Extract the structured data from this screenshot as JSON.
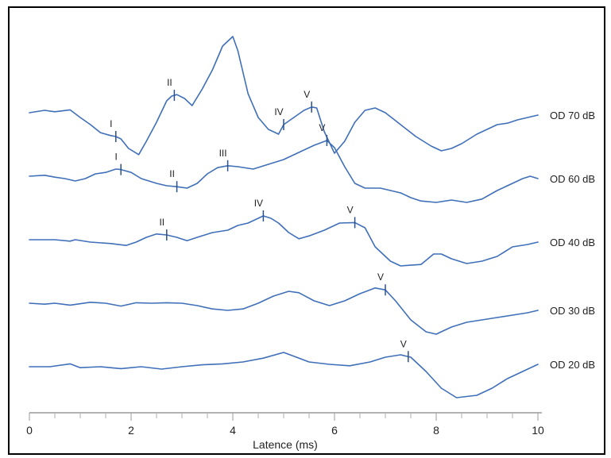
{
  "chart_data": {
    "type": "line",
    "xlabel": "Latence (ms)",
    "xlim": [
      0,
      10
    ],
    "x_ticks": [
      0,
      2,
      4,
      6,
      8,
      10
    ],
    "colors": {
      "trace": "#3f6fb8",
      "marker": "#2d4f8a",
      "axis": "#9a9a9a"
    },
    "series": [
      {
        "name": "OD 70 dB",
        "offset": 4,
        "points": [
          [
            0,
            0
          ],
          [
            0.3,
            0.05
          ],
          [
            0.5,
            0.02
          ],
          [
            0.8,
            0.06
          ],
          [
            1.0,
            -0.1
          ],
          [
            1.2,
            -0.25
          ],
          [
            1.4,
            -0.42
          ],
          [
            1.6,
            -0.48
          ],
          [
            1.7,
            -0.5
          ],
          [
            1.8,
            -0.55
          ],
          [
            1.95,
            -0.75
          ],
          [
            2.15,
            -0.88
          ],
          [
            2.3,
            -0.6
          ],
          [
            2.5,
            -0.2
          ],
          [
            2.7,
            0.25
          ],
          [
            2.8,
            0.35
          ],
          [
            2.9,
            0.38
          ],
          [
            3.05,
            0.3
          ],
          [
            3.2,
            0.15
          ],
          [
            3.4,
            0.5
          ],
          [
            3.6,
            0.9
          ],
          [
            3.8,
            1.4
          ],
          [
            4.0,
            1.6
          ],
          [
            4.1,
            1.3
          ],
          [
            4.3,
            0.4
          ],
          [
            4.5,
            -0.1
          ],
          [
            4.7,
            -0.35
          ],
          [
            4.9,
            -0.45
          ],
          [
            5.0,
            -0.25
          ],
          [
            5.2,
            -0.1
          ],
          [
            5.4,
            0.05
          ],
          [
            5.55,
            0.12
          ],
          [
            5.65,
            0.1
          ],
          [
            5.8,
            -0.4
          ],
          [
            6.0,
            -0.85
          ],
          [
            6.2,
            -0.6
          ],
          [
            6.4,
            -0.2
          ],
          [
            6.6,
            0.05
          ],
          [
            6.8,
            0.1
          ],
          [
            7.0,
            0.0
          ],
          [
            7.3,
            -0.25
          ],
          [
            7.6,
            -0.5
          ],
          [
            7.9,
            -0.7
          ],
          [
            8.1,
            -0.8
          ],
          [
            8.3,
            -0.75
          ],
          [
            8.5,
            -0.65
          ],
          [
            8.8,
            -0.45
          ],
          [
            9.0,
            -0.35
          ],
          [
            9.2,
            -0.25
          ],
          [
            9.4,
            -0.22
          ],
          [
            9.6,
            -0.15
          ],
          [
            9.8,
            -0.1
          ],
          [
            10.0,
            -0.05
          ]
        ]
      },
      {
        "name": "OD 60 dB",
        "offset": 3,
        "points": [
          [
            0,
            0
          ],
          [
            0.3,
            0.02
          ],
          [
            0.5,
            -0.02
          ],
          [
            0.7,
            -0.05
          ],
          [
            0.9,
            -0.1
          ],
          [
            1.1,
            -0.05
          ],
          [
            1.3,
            0.05
          ],
          [
            1.5,
            0.08
          ],
          [
            1.7,
            0.15
          ],
          [
            1.8,
            0.14
          ],
          [
            2.0,
            0.08
          ],
          [
            2.2,
            -0.05
          ],
          [
            2.5,
            -0.15
          ],
          [
            2.7,
            -0.2
          ],
          [
            2.9,
            -0.22
          ],
          [
            3.1,
            -0.25
          ],
          [
            3.3,
            -0.15
          ],
          [
            3.5,
            0.05
          ],
          [
            3.7,
            0.18
          ],
          [
            3.9,
            0.22
          ],
          [
            4.1,
            0.2
          ],
          [
            4.4,
            0.15
          ],
          [
            4.7,
            0.25
          ],
          [
            5.0,
            0.35
          ],
          [
            5.3,
            0.5
          ],
          [
            5.6,
            0.65
          ],
          [
            5.85,
            0.75
          ],
          [
            6.0,
            0.6
          ],
          [
            6.2,
            0.2
          ],
          [
            6.4,
            -0.15
          ],
          [
            6.6,
            -0.25
          ],
          [
            6.9,
            -0.25
          ],
          [
            7.1,
            -0.3
          ],
          [
            7.3,
            -0.35
          ],
          [
            7.5,
            -0.45
          ],
          [
            7.7,
            -0.52
          ],
          [
            8.0,
            -0.55
          ],
          [
            8.3,
            -0.5
          ],
          [
            8.6,
            -0.55
          ],
          [
            8.9,
            -0.48
          ],
          [
            9.2,
            -0.3
          ],
          [
            9.5,
            -0.15
          ],
          [
            9.7,
            -0.05
          ],
          [
            9.85,
            0.0
          ],
          [
            10.0,
            -0.05
          ]
        ]
      },
      {
        "name": "OD 40 dB",
        "offset": 2,
        "points": [
          [
            0,
            0
          ],
          [
            0.5,
            0.0
          ],
          [
            0.8,
            -0.03
          ],
          [
            0.9,
            0.0
          ],
          [
            1.2,
            -0.05
          ],
          [
            1.6,
            -0.08
          ],
          [
            1.9,
            -0.12
          ],
          [
            2.1,
            -0.05
          ],
          [
            2.3,
            0.05
          ],
          [
            2.5,
            0.12
          ],
          [
            2.7,
            0.1
          ],
          [
            2.9,
            0.05
          ],
          [
            3.1,
            -0.02
          ],
          [
            3.3,
            0.05
          ],
          [
            3.6,
            0.15
          ],
          [
            3.9,
            0.2
          ],
          [
            4.1,
            0.3
          ],
          [
            4.3,
            0.35
          ],
          [
            4.5,
            0.45
          ],
          [
            4.6,
            0.5
          ],
          [
            4.75,
            0.45
          ],
          [
            4.9,
            0.35
          ],
          [
            5.1,
            0.15
          ],
          [
            5.3,
            0.02
          ],
          [
            5.5,
            0.08
          ],
          [
            5.8,
            0.2
          ],
          [
            6.1,
            0.35
          ],
          [
            6.4,
            0.36
          ],
          [
            6.6,
            0.25
          ],
          [
            6.8,
            -0.15
          ],
          [
            7.1,
            -0.45
          ],
          [
            7.3,
            -0.55
          ],
          [
            7.7,
            -0.52
          ],
          [
            7.95,
            -0.3
          ],
          [
            8.1,
            -0.3
          ],
          [
            8.3,
            -0.4
          ],
          [
            8.6,
            -0.5
          ],
          [
            8.9,
            -0.45
          ],
          [
            9.2,
            -0.35
          ],
          [
            9.5,
            -0.15
          ],
          [
            9.8,
            -0.1
          ],
          [
            10.0,
            -0.05
          ]
        ]
      },
      {
        "name": "OD 30 dB",
        "offset": 1,
        "points": [
          [
            0,
            0
          ],
          [
            0.3,
            -0.02
          ],
          [
            0.5,
            0.0
          ],
          [
            0.8,
            -0.04
          ],
          [
            1.2,
            0.02
          ],
          [
            1.5,
            0.0
          ],
          [
            1.8,
            -0.06
          ],
          [
            2.1,
            0.01
          ],
          [
            2.4,
            0.0
          ],
          [
            2.7,
            0.01
          ],
          [
            3.0,
            0.0
          ],
          [
            3.3,
            -0.05
          ],
          [
            3.6,
            -0.12
          ],
          [
            3.9,
            -0.15
          ],
          [
            4.2,
            -0.12
          ],
          [
            4.5,
            0.0
          ],
          [
            4.8,
            0.15
          ],
          [
            5.1,
            0.25
          ],
          [
            5.3,
            0.22
          ],
          [
            5.6,
            0.05
          ],
          [
            5.9,
            -0.05
          ],
          [
            6.2,
            0.05
          ],
          [
            6.5,
            0.2
          ],
          [
            6.8,
            0.32
          ],
          [
            7.0,
            0.28
          ],
          [
            7.2,
            0.05
          ],
          [
            7.5,
            -0.35
          ],
          [
            7.8,
            -0.6
          ],
          [
            8.0,
            -0.65
          ],
          [
            8.3,
            -0.5
          ],
          [
            8.6,
            -0.4
          ],
          [
            8.9,
            -0.35
          ],
          [
            9.2,
            -0.3
          ],
          [
            9.5,
            -0.25
          ],
          [
            9.8,
            -0.2
          ],
          [
            10.0,
            -0.15
          ]
        ]
      },
      {
        "name": "OD 20 dB",
        "offset": 0,
        "points": [
          [
            0,
            0
          ],
          [
            0.4,
            0.0
          ],
          [
            0.8,
            0.06
          ],
          [
            1.0,
            -0.02
          ],
          [
            1.4,
            0.0
          ],
          [
            1.8,
            -0.04
          ],
          [
            2.2,
            0.0
          ],
          [
            2.6,
            -0.05
          ],
          [
            3.0,
            0.0
          ],
          [
            3.4,
            0.04
          ],
          [
            3.8,
            0.06
          ],
          [
            4.2,
            0.1
          ],
          [
            4.6,
            0.18
          ],
          [
            5.0,
            0.3
          ],
          [
            5.2,
            0.22
          ],
          [
            5.5,
            0.1
          ],
          [
            5.9,
            0.05
          ],
          [
            6.3,
            0.02
          ],
          [
            6.7,
            0.1
          ],
          [
            7.0,
            0.2
          ],
          [
            7.3,
            0.25
          ],
          [
            7.5,
            0.2
          ],
          [
            7.8,
            -0.1
          ],
          [
            8.1,
            -0.45
          ],
          [
            8.4,
            -0.65
          ],
          [
            8.8,
            -0.6
          ],
          [
            9.1,
            -0.45
          ],
          [
            9.4,
            -0.25
          ],
          [
            9.7,
            -0.1
          ],
          [
            10.0,
            0.05
          ]
        ]
      }
    ],
    "peaks": [
      {
        "series": "OD 70 dB",
        "label": "I",
        "x": 1.7
      },
      {
        "series": "OD 70 dB",
        "label": "II",
        "x": 2.85
      },
      {
        "series": "OD 70 dB",
        "label": "IV",
        "x": 5.0
      },
      {
        "series": "OD 70 dB",
        "label": "V",
        "x": 5.55
      },
      {
        "series": "OD 60 dB",
        "label": "I",
        "x": 1.8
      },
      {
        "series": "OD 60 dB",
        "label": "II",
        "x": 2.9
      },
      {
        "series": "OD 60 dB",
        "label": "III",
        "x": 3.9
      },
      {
        "series": "OD 60 dB",
        "label": "V",
        "x": 5.85
      },
      {
        "series": "OD 40 dB",
        "label": "II",
        "x": 2.7
      },
      {
        "series": "OD 40 dB",
        "label": "IV",
        "x": 4.6
      },
      {
        "series": "OD 40 dB",
        "label": "V",
        "x": 6.4
      },
      {
        "series": "OD 30 dB",
        "label": "V",
        "x": 7.0
      },
      {
        "series": "OD 20 dB",
        "label": "V",
        "x": 7.45
      }
    ]
  }
}
